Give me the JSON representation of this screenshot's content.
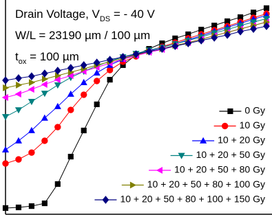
{
  "chart_data": {
    "type": "line",
    "annotations": [
      {
        "text": "Drain Voltage, V",
        "sub": "DS",
        "tail": " = - 40 V"
      },
      {
        "text": "W/L = 23190 µm / 100 µm"
      },
      {
        "text": "t",
        "sub": "ox",
        "tail": " = 100 µm"
      }
    ],
    "x": [
      0,
      5,
      10,
      15,
      20,
      25,
      30,
      35,
      40,
      45,
      50,
      55,
      60,
      65,
      70,
      75,
      80,
      85,
      90,
      95,
      100
    ],
    "xlim": [
      0,
      100
    ],
    "ylim": [
      0,
      100
    ],
    "legend": "lower right",
    "series": [
      {
        "name": "0 Gy",
        "color": "#000000",
        "marker": "square",
        "values": [
          2.9,
          3.2,
          3.8,
          5.1,
          14.1,
          26.9,
          39.1,
          51.3,
          62.8,
          69.6,
          74.4,
          77.2,
          79.8,
          82.1,
          84.0,
          86.2,
          88.1,
          90.1,
          92.0,
          94.2,
          96.2
        ]
      },
      {
        "name": "10 Gy",
        "color": "#ff0000",
        "marker": "circle",
        "values": [
          23.7,
          25.6,
          28.8,
          34.3,
          40.7,
          48.7,
          55.8,
          62.2,
          67.3,
          71.2,
          73.7,
          76.3,
          78.2,
          80.1,
          82.1,
          84.0,
          85.9,
          87.8,
          89.7,
          91.7,
          93.6
        ]
      },
      {
        "name": "10 + 20 Gy",
        "color": "#0000ff",
        "marker": "triangle-up",
        "values": [
          30.1,
          34.3,
          39.1,
          44.9,
          50.3,
          56.1,
          61.5,
          66.0,
          69.6,
          72.4,
          74.4,
          76.3,
          77.9,
          79.5,
          81.4,
          83.3,
          85.3,
          87.2,
          89.1,
          91.0,
          92.9
        ]
      },
      {
        "name": "10 + 20 + 50 Gy",
        "color": "#008080",
        "marker": "triangle-down",
        "values": [
          45.5,
          48.7,
          52.6,
          56.4,
          60.3,
          63.8,
          66.7,
          69.2,
          71.5,
          73.4,
          75.0,
          76.6,
          77.9,
          79.5,
          81.1,
          82.7,
          84.6,
          86.2,
          88.1,
          89.7,
          91.3
        ]
      },
      {
        "name": "10 + 20 + 50 + 80 Gy",
        "color": "#ff00ff",
        "marker": "triangle-left",
        "values": [
          54.5,
          56.1,
          58.3,
          60.6,
          62.8,
          64.7,
          66.7,
          68.6,
          70.5,
          72.4,
          74.0,
          75.6,
          76.9,
          78.5,
          80.1,
          81.7,
          83.3,
          84.9,
          86.5,
          88.1,
          89.7
        ]
      },
      {
        "name": "10 + 20 + 50 + 80 + 100 Gy",
        "color": "#808000",
        "marker": "triangle-right",
        "values": [
          59.0,
          60.3,
          61.5,
          63.1,
          64.7,
          66.3,
          67.9,
          69.6,
          71.2,
          72.8,
          74.4,
          76.0,
          77.2,
          78.8,
          80.1,
          81.7,
          83.3,
          84.9,
          86.5,
          88.1,
          89.7
        ]
      },
      {
        "name": "10 + 20 + 50 + 80 + 100 + 150 Gy",
        "color": "#000080",
        "marker": "diamond",
        "values": [
          62.5,
          63.5,
          64.4,
          65.7,
          67.0,
          68.3,
          69.6,
          70.8,
          72.1,
          73.4,
          74.7,
          76.0,
          77.2,
          78.5,
          79.8,
          81.1,
          82.4,
          83.7,
          85.3,
          86.5,
          87.8
        ]
      }
    ]
  }
}
